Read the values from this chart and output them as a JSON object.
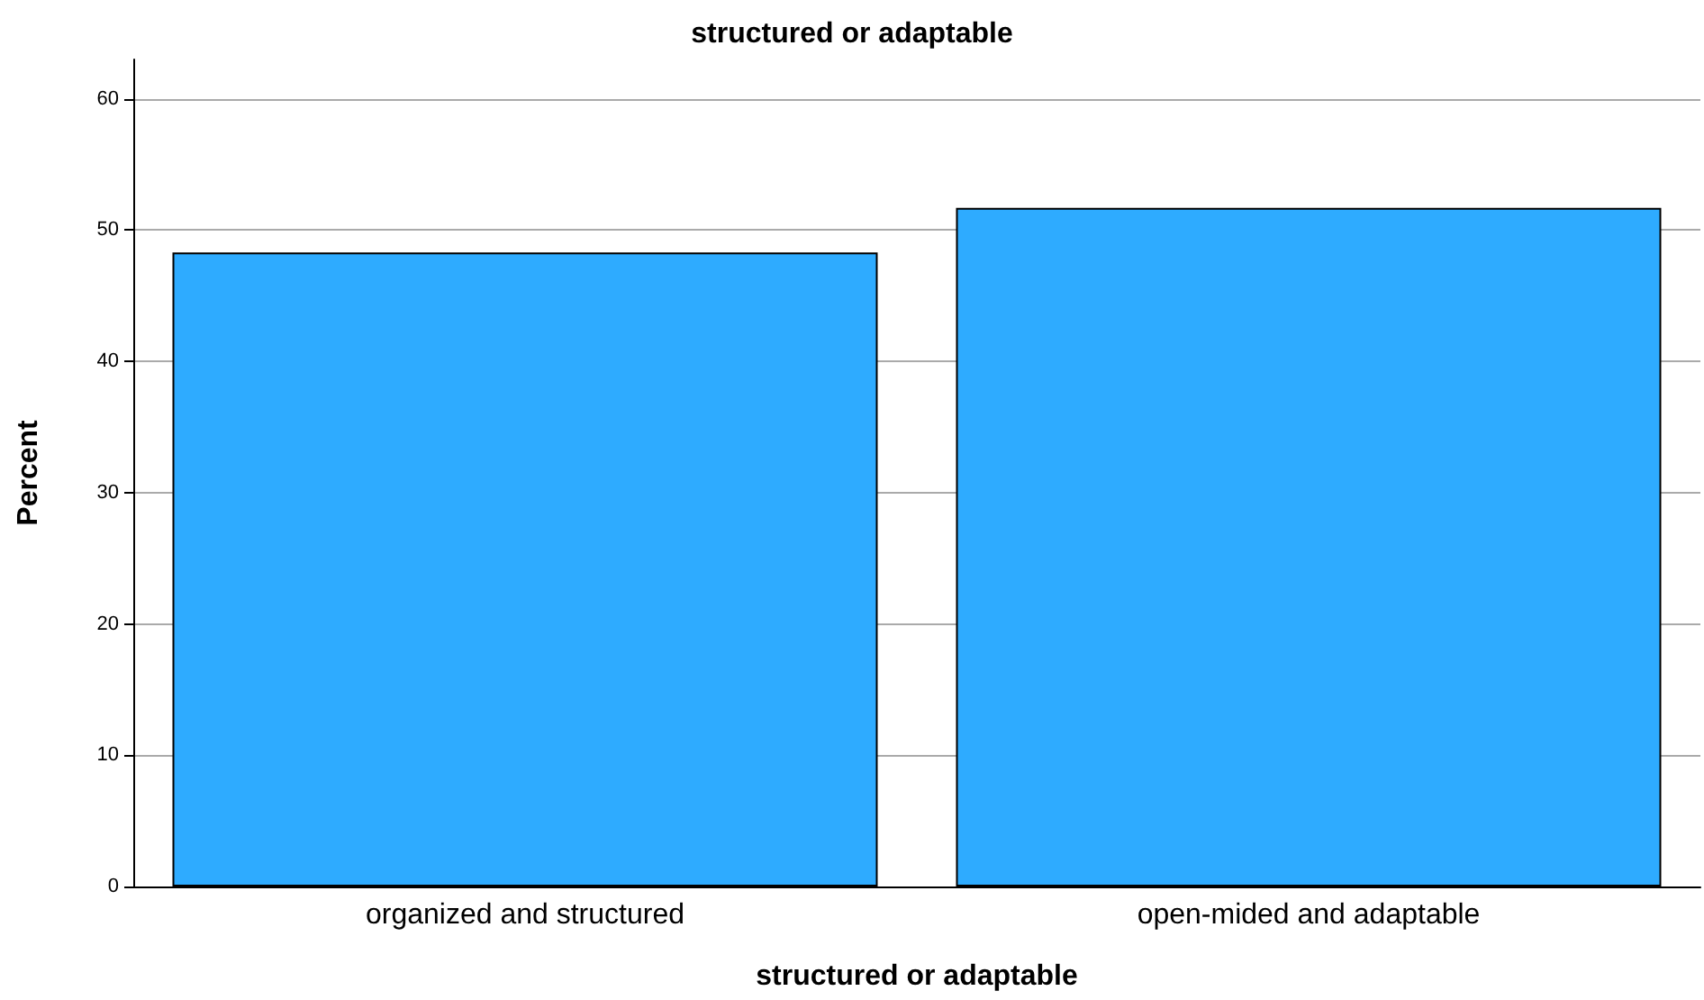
{
  "chart_data": {
    "type": "bar",
    "title": "structured or adaptable",
    "xlabel": "structured or adaptable",
    "ylabel": "Percent",
    "categories": [
      "organized and structured",
      "open-mided and adaptable"
    ],
    "values": [
      48.3,
      51.7
    ],
    "color": "#2eabff",
    "ylim": [
      0,
      63
    ],
    "yticks": [
      0,
      10,
      20,
      30,
      40,
      50,
      60
    ],
    "grid": "y"
  }
}
